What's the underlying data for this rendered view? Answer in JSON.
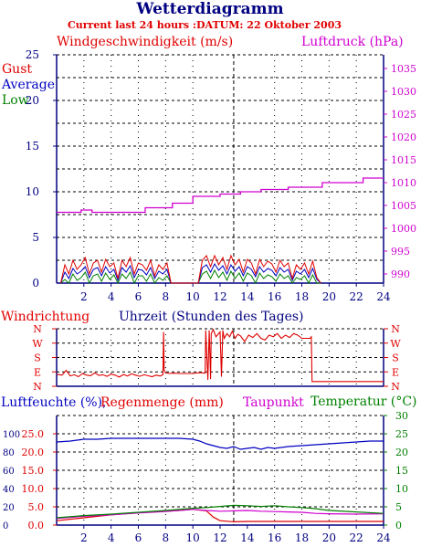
{
  "header": {
    "title": "Wetterdiagramm",
    "subtitle": "Current last 24 hours :DATUM: 22 Oktober 2003"
  },
  "colors": {
    "navy": "#000080",
    "red": "#e00000",
    "green": "#008000",
    "magenta": "#d000d0",
    "grid": "#000000"
  },
  "chart_data": [
    {
      "type": "line",
      "name": "wind_pressure",
      "title": "",
      "left_label": "Windgeschwindigkeit (m/s)",
      "right_label": "Luftdruck (hPa)",
      "legend": [
        "Gust",
        "Average",
        "Low"
      ],
      "xlabel": "Uhrzeit (Stunden des Tages)",
      "x_ticks": [
        2,
        4,
        6,
        8,
        10,
        12,
        14,
        16,
        18,
        20,
        22,
        24
      ],
      "xlim": [
        0,
        24
      ],
      "ylim_left": [
        0,
        25
      ],
      "y_ticks_left": [
        0,
        5,
        10,
        15,
        20,
        25
      ],
      "ylim_right": [
        988,
        1038
      ],
      "y_ticks_right": [
        990,
        995,
        1000,
        1005,
        1010,
        1015,
        1020,
        1025,
        1030,
        1035
      ],
      "grid": true,
      "marker_hour": 13,
      "series": [
        {
          "name": "Luftdruck",
          "axis": "right",
          "x": [
            0,
            1.8,
            1.8,
            2.6,
            2.6,
            6.5,
            6.5,
            8.5,
            8.5,
            10,
            10,
            12,
            12,
            13.5,
            13.5,
            15,
            15,
            17,
            17,
            19.5,
            19.5,
            22.5,
            22.5,
            24
          ],
          "y": [
            1003.5,
            1003.5,
            1004,
            1004,
            1003.5,
            1003.5,
            1004.5,
            1004.5,
            1005.5,
            1005.5,
            1007,
            1007,
            1007.5,
            1007.5,
            1008,
            1008,
            1008.5,
            1008.5,
            1009,
            1009,
            1010,
            1010,
            1011,
            1011
          ]
        },
        {
          "name": "Gust",
          "axis": "left",
          "x": [
            0.3,
            0.6,
            0.9,
            1.2,
            1.5,
            1.8,
            2.1,
            2.4,
            2.7,
            3.0,
            3.3,
            3.6,
            3.9,
            4.2,
            4.5,
            4.8,
            5.1,
            5.4,
            5.7,
            6.0,
            6.3,
            6.6,
            6.9,
            7.2,
            7.5,
            7.8,
            8.1,
            8.4,
            10.4,
            10.7,
            11.0,
            11.3,
            11.6,
            11.9,
            12.2,
            12.5,
            12.8,
            13.1,
            13.4,
            13.7,
            14.0,
            14.3,
            14.6,
            14.9,
            15.2,
            15.5,
            15.8,
            16.1,
            16.4,
            16.7,
            17.0,
            17.3,
            17.6,
            17.9,
            18.2,
            18.5,
            18.8,
            19.1,
            19.4
          ],
          "y": [
            0,
            2,
            1,
            2.5,
            1.5,
            2,
            2.8,
            1,
            2.2,
            2.5,
            1.2,
            2.6,
            1.8,
            2.2,
            0.5,
            2.5,
            1.8,
            2.8,
            1,
            2.2,
            2,
            1.4,
            2.5,
            0.8,
            2,
            1.5,
            2.2,
            0,
            0,
            2.5,
            3,
            1.8,
            3,
            2,
            2.8,
            1.5,
            3,
            2,
            2.6,
            1.2,
            2.6,
            2.2,
            1,
            2.6,
            1.8,
            2.4,
            2.1,
            1.2,
            2.5,
            1.8,
            2.2,
            0.5,
            2,
            1.5,
            2.2,
            1,
            2.4,
            0.6,
            0
          ]
        },
        {
          "name": "Average",
          "axis": "left",
          "x": [
            0.3,
            0.6,
            0.9,
            1.2,
            1.5,
            1.8,
            2.1,
            2.4,
            2.7,
            3.0,
            3.3,
            3.6,
            3.9,
            4.2,
            4.5,
            4.8,
            5.1,
            5.4,
            5.7,
            6.0,
            6.3,
            6.6,
            6.9,
            7.2,
            7.5,
            7.8,
            8.1,
            8.4,
            10.4,
            10.7,
            11.0,
            11.3,
            11.6,
            11.9,
            12.2,
            12.5,
            12.8,
            13.1,
            13.4,
            13.7,
            14.0,
            14.3,
            14.6,
            14.9,
            15.2,
            15.5,
            15.8,
            16.1,
            16.4,
            16.7,
            17.0,
            17.3,
            17.6,
            17.9,
            18.2,
            18.5,
            18.8,
            19.1,
            19.4
          ],
          "y": [
            0,
            1.2,
            0.5,
            1.6,
            1,
            1.3,
            1.8,
            0.6,
            1.5,
            1.7,
            0.8,
            1.8,
            1.1,
            1.5,
            0.3,
            1.7,
            1.2,
            1.9,
            0.6,
            1.5,
            1.4,
            0.9,
            1.7,
            0.5,
            1.3,
            1,
            1.5,
            0,
            0,
            1.7,
            2,
            1.2,
            2.1,
            1.4,
            1.9,
            1,
            2,
            1.3,
            1.8,
            0.8,
            1.8,
            1.5,
            0.7,
            1.8,
            1.2,
            1.6,
            1.4,
            0.8,
            1.7,
            1.2,
            1.5,
            0.3,
            1.3,
            1,
            1.5,
            0.6,
            1.6,
            0.4,
            0
          ]
        },
        {
          "name": "Low",
          "axis": "left",
          "x": [
            0.3,
            0.6,
            0.9,
            1.2,
            1.5,
            1.8,
            2.1,
            2.4,
            2.7,
            3.0,
            3.3,
            3.6,
            3.9,
            4.2,
            4.5,
            4.8,
            5.1,
            5.4,
            5.7,
            6.0,
            6.3,
            6.6,
            6.9,
            7.2,
            7.5,
            7.8,
            8.1,
            8.4,
            10.4,
            10.7,
            11.0,
            11.3,
            11.6,
            11.9,
            12.2,
            12.5,
            12.8,
            13.1,
            13.4,
            13.7,
            14.0,
            14.3,
            14.6,
            14.9,
            15.2,
            15.5,
            15.8,
            16.1,
            16.4,
            16.7,
            17.0,
            17.3,
            17.6,
            17.9,
            18.2,
            18.5,
            18.8,
            19.1,
            19.4
          ],
          "y": [
            0,
            0.4,
            0,
            1,
            0.3,
            0.6,
            1.2,
            0,
            0.8,
            1,
            0.2,
            1.1,
            0.4,
            0.9,
            0,
            1,
            0.5,
            1.2,
            0,
            0.8,
            0.8,
            0.2,
            1,
            0,
            0.6,
            0.3,
            0.8,
            0,
            0,
            1,
            1.3,
            0.5,
            1.4,
            0.6,
            1.2,
            0.3,
            1.3,
            0.5,
            1.1,
            0.2,
            1.1,
            0.8,
            0,
            1.1,
            0.5,
            0.9,
            0.7,
            0.2,
            1,
            0.5,
            0.8,
            0,
            0.6,
            0.4,
            0.8,
            0,
            0.9,
            0,
            0
          ]
        }
      ]
    },
    {
      "type": "line",
      "name": "wind_direction",
      "title": "Windrichtung",
      "xlabel": "Uhrzeit (Stunden des Tages)",
      "y_categories": [
        "N",
        "E",
        "S",
        "W",
        "N"
      ],
      "y_labels_top_to_bottom": [
        "N",
        "W",
        "S",
        "E",
        "N"
      ],
      "ylim": [
        0,
        360
      ],
      "xlim": [
        0,
        24
      ],
      "grid": true,
      "marker_hour": 13,
      "series": [
        {
          "name": "Windrichtung",
          "x": [
            0,
            0.4,
            0.7,
            1.0,
            1.3,
            1.6,
            1.9,
            2.2,
            2.5,
            2.8,
            3.1,
            3.4,
            3.7,
            4.0,
            4.3,
            4.6,
            4.9,
            5.2,
            5.5,
            5.8,
            6.1,
            6.4,
            6.7,
            7.0,
            7.3,
            7.6,
            7.8,
            7.85,
            7.9,
            8.0,
            8.3,
            8.6,
            9.0,
            9.5,
            10.0,
            10.5,
            10.9,
            10.95,
            11.1,
            11.2,
            11.3,
            11.35,
            11.5,
            11.7,
            12.0,
            12.1,
            12.2,
            12.3,
            12.5,
            12.7,
            12.9,
            13.1,
            13.3,
            13.5,
            13.8,
            14.1,
            14.4,
            14.7,
            15.0,
            15.3,
            15.6,
            15.9,
            16.2,
            16.5,
            16.8,
            17.1,
            17.4,
            17.7,
            18.0,
            18.3,
            18.6,
            18.7,
            18.75,
            19.5,
            24
          ],
          "y": [
            75,
            70,
            100,
            65,
            72,
            60,
            80,
            70,
            66,
            84,
            68,
            72,
            62,
            76,
            70,
            58,
            74,
            64,
            78,
            70,
            62,
            72,
            66,
            60,
            70,
            64,
            72,
            340,
            100,
            84,
            80,
            82,
            80,
            80,
            80,
            85,
            82,
            350,
            40,
            350,
            45,
            330,
            355,
            310,
            340,
            60,
            350,
            300,
            330,
            310,
            345,
            300,
            325,
            315,
            280,
            320,
            305,
            330,
            300,
            290,
            320,
            310,
            330,
            300,
            320,
            305,
            330,
            320,
            300,
            300,
            300,
            310,
            30,
            30,
            30
          ]
        }
      ]
    },
    {
      "type": "line",
      "name": "humidity_rain_temperature",
      "left_label": "Luftfeuchte (%),",
      "left_label2": "Regenmenge (mm)",
      "dewpoint_label": "Taupunkt",
      "right_label": "Temperatur (°C)",
      "x_ticks": [
        2,
        4,
        6,
        8,
        10,
        12,
        14,
        16,
        18,
        20,
        22,
        24
      ],
      "xlim": [
        0,
        24
      ],
      "y_ticks_humidity": [
        0,
        20,
        40,
        60,
        80,
        100
      ],
      "y_ticks_rain": [
        "0.0",
        "5.0",
        "10.0",
        "15.0",
        "20.0",
        "25.0"
      ],
      "ylim_humidity": [
        0,
        120
      ],
      "ylim_rain": [
        0,
        30
      ],
      "y_ticks_temperature": [
        0,
        5,
        10,
        15,
        20,
        25,
        30
      ],
      "ylim_temperature": [
        0,
        30
      ],
      "grid": true,
      "marker_hour": 13,
      "series": [
        {
          "name": "Luftfeuchte",
          "axis": "humidity",
          "x": [
            0,
            1,
            2,
            3,
            4,
            5,
            6,
            7,
            8,
            9,
            10,
            10.5,
            11,
            11.5,
            12,
            12.5,
            13,
            13.5,
            14,
            14.5,
            15,
            15.5,
            16,
            17,
            18,
            19,
            20,
            21,
            22,
            23,
            24
          ],
          "y": [
            91,
            92,
            94,
            94,
            95,
            95,
            95,
            95,
            95,
            95,
            94,
            92,
            89,
            87,
            85,
            84,
            86,
            83,
            84,
            85,
            83,
            85,
            84,
            86,
            87,
            88,
            89,
            90,
            91,
            92,
            92
          ]
        },
        {
          "name": "Regenmenge",
          "axis": "rain",
          "x": [
            0,
            2,
            4,
            6,
            8,
            9,
            10,
            11,
            11.5,
            12,
            13,
            14,
            16,
            18,
            20,
            22,
            24
          ],
          "y": [
            1.2,
            2.0,
            2.8,
            3.4,
            3.8,
            4.0,
            4.3,
            3.9,
            2.2,
            1.2,
            0.9,
            1.0,
            1.0,
            1.0,
            1.0,
            1.0,
            1.0
          ]
        },
        {
          "name": "Taupunkt",
          "axis": "temperature",
          "x": [
            0,
            2,
            4,
            6,
            8,
            10,
            11,
            12,
            13,
            14,
            15,
            16,
            17,
            18,
            19,
            20,
            22,
            24
          ],
          "y": [
            1.8,
            2.4,
            2.8,
            3.3,
            3.7,
            4.3,
            4.0,
            3.8,
            3.9,
            4.0,
            3.8,
            3.7,
            3.6,
            3.5,
            3.2,
            3.1,
            3.0,
            3.1
          ]
        },
        {
          "name": "Temperatur",
          "axis": "temperature",
          "x": [
            0,
            2,
            4,
            6,
            8,
            10,
            11,
            12,
            13,
            14,
            15,
            16,
            17,
            18,
            19,
            20,
            22,
            24
          ],
          "y": [
            2.0,
            2.6,
            3.0,
            3.5,
            4.0,
            4.6,
            4.8,
            5.1,
            5.4,
            5.3,
            5.1,
            5.3,
            5.0,
            4.8,
            4.5,
            4.0,
            3.6,
            3.2
          ]
        }
      ]
    }
  ]
}
